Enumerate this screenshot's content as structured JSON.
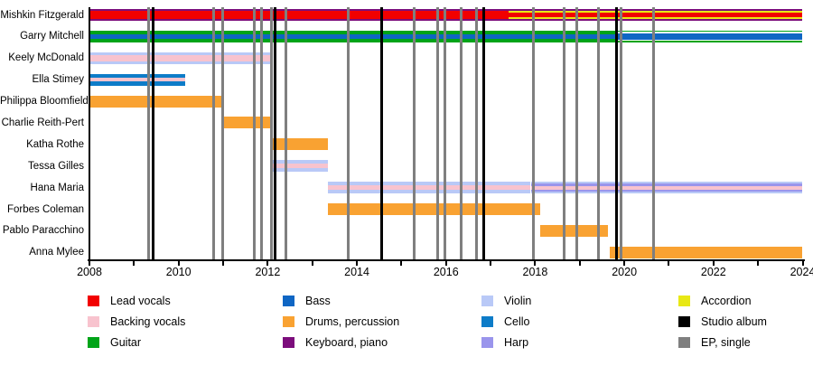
{
  "chart_data": {
    "type": "gantt",
    "x_axis": {
      "min": 2008,
      "max": 2024,
      "labeled_ticks": [
        2008,
        2010,
        2012,
        2014,
        2016,
        2018,
        2020,
        2022,
        2024
      ],
      "minor_tick_every": 1
    },
    "role_colors": {
      "lead_vocals": "#f20000",
      "backing_vocals": "#f8c3ce",
      "guitar": "#00a418",
      "bass": "#0f66c4",
      "drums": "#f9a232",
      "keyboard": "#7c0d7c",
      "violin": "#b9c9f7",
      "cello": "#0d7cc8",
      "harp": "#9a95ec",
      "accordion": "#e8e815",
      "album": "#000000",
      "ep": "#7f7f7f",
      "white": "#ffffff"
    },
    "members": [
      {
        "name": "Mishkin Fitzgerald",
        "segments": [
          {
            "start": 2008,
            "end": 2017.4,
            "layers": [
              "keyboard",
              "lead_vocals"
            ],
            "fracs": [
              1,
              0.62
            ]
          },
          {
            "start": 2017.4,
            "end": 2024,
            "layers": [
              "keyboard",
              "accordion",
              "lead_vocals"
            ],
            "fracs": [
              1,
              0.7,
              0.4
            ]
          }
        ]
      },
      {
        "name": "Garry Mitchell",
        "segments": [
          {
            "start": 2008,
            "end": 2019.82,
            "layers": [
              "guitar",
              "bass"
            ],
            "fracs": [
              1,
              0.4
            ]
          },
          {
            "start": 2019.82,
            "end": 2024,
            "layers": [
              "guitar",
              "white",
              "bass"
            ],
            "fracs": [
              1,
              0.78,
              0.5
            ]
          }
        ]
      },
      {
        "name": "Keely McDonald",
        "segments": [
          {
            "start": 2008,
            "end": 2012.07,
            "layers": [
              "violin",
              "backing_vocals"
            ],
            "fracs": [
              1,
              0.5
            ]
          }
        ]
      },
      {
        "name": "Ella Stimey",
        "segments": [
          {
            "start": 2008,
            "end": 2010.15,
            "layers": [
              "cello",
              "backing_vocals"
            ],
            "fracs": [
              1,
              0.36
            ]
          }
        ]
      },
      {
        "name": "Philippa Bloomfield",
        "segments": [
          {
            "start": 2008,
            "end": 2011.0,
            "layers": [
              "drums"
            ],
            "fracs": [
              1
            ]
          }
        ]
      },
      {
        "name": "Charlie Reith-Pert",
        "segments": [
          {
            "start": 2011.0,
            "end": 2012.07,
            "layers": [
              "drums"
            ],
            "fracs": [
              1
            ]
          }
        ]
      },
      {
        "name": "Katha Rothe",
        "segments": [
          {
            "start": 2012.05,
            "end": 2013.35,
            "layers": [
              "drums"
            ],
            "fracs": [
              1
            ]
          }
        ]
      },
      {
        "name": "Tessa Gilles",
        "segments": [
          {
            "start": 2012.05,
            "end": 2013.35,
            "layers": [
              "violin",
              "backing_vocals"
            ],
            "fracs": [
              1,
              0.42
            ]
          }
        ]
      },
      {
        "name": "Hana Maria",
        "segments": [
          {
            "start": 2013.35,
            "end": 2017.9,
            "layers": [
              "violin",
              "backing_vocals"
            ],
            "fracs": [
              1,
              0.34
            ]
          },
          {
            "start": 2017.9,
            "end": 2024,
            "layers": [
              "violin",
              "harp",
              "backing_vocals"
            ],
            "fracs": [
              1,
              0.68,
              0.3
            ]
          }
        ]
      },
      {
        "name": "Forbes Coleman",
        "segments": [
          {
            "start": 2013.35,
            "end": 2018.12,
            "layers": [
              "drums"
            ],
            "fracs": [
              1
            ]
          }
        ]
      },
      {
        "name": "Pablo Paracchino",
        "segments": [
          {
            "start": 2018.12,
            "end": 2019.64,
            "layers": [
              "drums"
            ],
            "fracs": [
              1
            ]
          }
        ]
      },
      {
        "name": "Anna Mylee",
        "segments": [
          {
            "start": 2019.67,
            "end": 2024,
            "layers": [
              "drums"
            ],
            "fracs": [
              1
            ]
          }
        ]
      }
    ],
    "releases": [
      {
        "year": 2009.33,
        "type": "ep"
      },
      {
        "year": 2009.42,
        "type": "album"
      },
      {
        "year": 2010.79,
        "type": "ep"
      },
      {
        "year": 2010.98,
        "type": "ep"
      },
      {
        "year": 2011.69,
        "type": "ep"
      },
      {
        "year": 2011.86,
        "type": "ep"
      },
      {
        "year": 2012.09,
        "type": "ep"
      },
      {
        "year": 2012.17,
        "type": "album"
      },
      {
        "year": 2012.4,
        "type": "ep"
      },
      {
        "year": 2013.8,
        "type": "ep"
      },
      {
        "year": 2014.55,
        "type": "album"
      },
      {
        "year": 2015.29,
        "type": "ep"
      },
      {
        "year": 2015.81,
        "type": "ep"
      },
      {
        "year": 2015.97,
        "type": "ep"
      },
      {
        "year": 2016.34,
        "type": "ep"
      },
      {
        "year": 2016.68,
        "type": "ep"
      },
      {
        "year": 2016.84,
        "type": "album"
      },
      {
        "year": 2017.96,
        "type": "ep"
      },
      {
        "year": 2018.65,
        "type": "ep"
      },
      {
        "year": 2018.94,
        "type": "ep"
      },
      {
        "year": 2019.41,
        "type": "ep"
      },
      {
        "year": 2019.82,
        "type": "album"
      },
      {
        "year": 2019.93,
        "type": "ep"
      },
      {
        "year": 2020.66,
        "type": "ep"
      }
    ],
    "legend": {
      "columns": [
        [
          {
            "label": "Lead vocals",
            "role": "lead_vocals"
          },
          {
            "label": "Backing vocals",
            "role": "backing_vocals"
          },
          {
            "label": "Guitar",
            "role": "guitar"
          }
        ],
        [
          {
            "label": "Bass",
            "role": "bass"
          },
          {
            "label": "Drums, percussion",
            "role": "drums"
          },
          {
            "label": "Keyboard, piano",
            "role": "keyboard"
          }
        ],
        [
          {
            "label": "Violin",
            "role": "violin"
          },
          {
            "label": "Cello",
            "role": "cello"
          },
          {
            "label": "Harp",
            "role": "harp"
          }
        ],
        [
          {
            "label": "Accordion",
            "role": "accordion"
          },
          {
            "label": "Studio album",
            "role": "album"
          },
          {
            "label": "EP, single",
            "role": "ep"
          }
        ]
      ]
    }
  }
}
